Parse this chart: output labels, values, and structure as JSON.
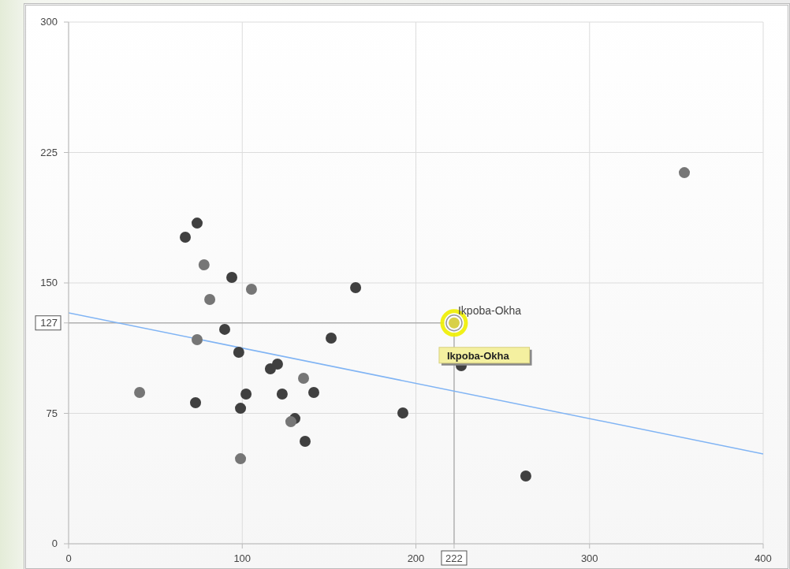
{
  "chart_data": {
    "type": "scatter",
    "annotations": [
      {
        "text": "Ikpoba-Okha",
        "x": 222,
        "y": 127
      },
      "Ikpoba-Okha"
    ],
    "series": [
      {
        "x": [
          67.2,
          74,
          94,
          165.3,
          89.9,
          98,
          151.2,
          120.3,
          116.2,
          73.1,
          102.2,
          123,
          141.2,
          99,
          130.3,
          136.2,
          192.5,
          226.1,
          263.3
        ],
        "values": [
          176.3,
          184.4,
          153.2,
          147.3,
          123.3,
          110.1,
          118.3,
          103.3,
          100.6,
          81.1,
          86.1,
          86.1,
          87,
          77.9,
          72,
          58.9,
          75.2,
          102.4,
          39
        ],
        "color": "#404040"
      },
      {
        "x": [
          78,
          105.3,
          81.3,
          74,
          135.3,
          40.9,
          128,
          99,
          354.6
        ],
        "values": [
          160.4,
          146.4,
          140.5,
          117.4,
          95.2,
          87,
          70.2,
          48.9,
          213.4
        ],
        "color": "#767676"
      },
      {
        "x": [
          222
        ],
        "values": [
          127
        ],
        "color": "#d8d048"
      },
      {
        "type": "line",
        "x": [
          0,
          400
        ],
        "values": [
          132.8,
          51.7
        ],
        "color": "#80b4f4",
        "marker": "none"
      }
    ],
    "xlim": [
      0,
      400
    ],
    "ylim": [
      0,
      300
    ],
    "xticks": [
      0,
      100,
      200,
      222,
      300,
      400
    ],
    "yticks": [
      0,
      75,
      127,
      150,
      225,
      300
    ],
    "ref_lines": [
      {
        "axis": "y",
        "value": 127,
        "color": "#b0b0b0"
      },
      {
        "axis": "x",
        "value": 222,
        "color": "#b0b0b0"
      }
    ],
    "grid": true,
    "marker": "circle"
  }
}
